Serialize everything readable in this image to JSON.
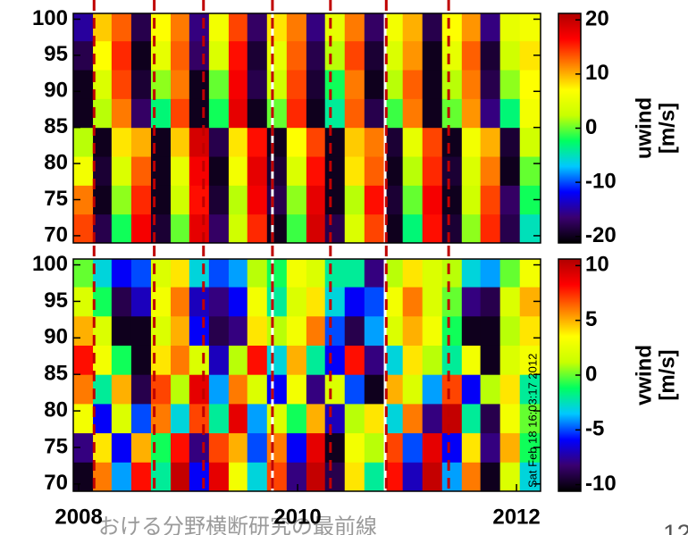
{
  "chart_data": [
    {
      "type": "heatmap",
      "xlim": [
        2007.95,
        2012.22
      ],
      "ylim": [
        69,
        100.8
      ],
      "yticks": [
        70,
        75,
        80,
        85,
        90,
        95,
        100
      ],
      "x_bins": [
        2007.95,
        2008.13,
        2008.3,
        2008.48,
        2008.66,
        2008.84,
        2009.01,
        2009.19,
        2009.37,
        2009.54,
        2009.72,
        2009.9,
        2010.08,
        2010.25,
        2010.43,
        2010.61,
        2010.79,
        2010.96,
        2011.14,
        2011.32,
        2011.5,
        2011.67,
        2011.85,
        2012.03,
        2012.22
      ],
      "y_bins": [
        69,
        73,
        77,
        81,
        85,
        89,
        93,
        97,
        100.8
      ],
      "values": [
        [
          14,
          -18,
          -2,
          17,
          -19,
          0,
          18,
          -17,
          3,
          15,
          -20,
          -1,
          19,
          -18,
          4,
          14,
          -20,
          -3,
          16,
          -19,
          1,
          15,
          -18,
          -5
        ],
        [
          12,
          -20,
          1,
          15,
          -20,
          3,
          16,
          -19,
          2,
          17,
          -18,
          1,
          18,
          -20,
          2,
          16,
          -19,
          0,
          17,
          -20,
          3,
          14,
          -17,
          -2
        ],
        [
          6,
          -19,
          4,
          13,
          -20,
          5,
          17,
          -20,
          6,
          18,
          -19,
          4,
          16,
          -20,
          8,
          13,
          -20,
          2,
          15,
          -19,
          4,
          12,
          -20,
          0
        ],
        [
          2,
          -20,
          8,
          10,
          -20,
          9,
          19,
          -18,
          8,
          16,
          -20,
          7,
          14,
          -20,
          9,
          12,
          -19,
          5,
          14,
          -20,
          6,
          10,
          -19,
          3
        ],
        [
          -20,
          2,
          12,
          -17,
          -3,
          14,
          -20,
          -2,
          18,
          -20,
          0,
          15,
          -20,
          -4,
          13,
          -18,
          -1,
          12,
          -20,
          0,
          11,
          -16,
          -3,
          6
        ],
        [
          -20,
          4,
          14,
          -19,
          1,
          12,
          -20,
          0,
          17,
          -18,
          3,
          14,
          -19,
          -2,
          12,
          -20,
          2,
          13,
          -20,
          2,
          12,
          -18,
          1,
          7
        ],
        [
          -18,
          7,
          15,
          -20,
          5,
          13,
          -17,
          4,
          16,
          -19,
          5,
          13,
          -18,
          2,
          14,
          -19,
          4,
          11,
          -20,
          5,
          13,
          -19,
          3,
          8
        ],
        [
          -15,
          9,
          13,
          -18,
          7,
          12,
          -16,
          6,
          14,
          -17,
          8,
          12,
          -16,
          5,
          12,
          -17,
          6,
          10,
          -18,
          7,
          11,
          -16,
          5,
          6
        ]
      ],
      "colormap": [
        "#000000",
        "#3a0070",
        "#0000ff",
        "#00c8ff",
        "#00ff60",
        "#c8ff00",
        "#ffff00",
        "#ff8000",
        "#ff0000",
        "#b00000"
      ],
      "clim": [
        -21.2,
        21.2
      ],
      "cticks": [
        20,
        10,
        0,
        -10,
        -20
      ],
      "colorbar_label": [
        "uwind",
        "[m/s]"
      ],
      "event_lines": [
        2008.14,
        2008.69,
        2009.14,
        2009.77,
        2010.3,
        2010.81,
        2011.38
      ],
      "event_color": "#c00000",
      "data_gaps": [
        2009.77,
        2010.8
      ]
    },
    {
      "type": "heatmap",
      "xlim": [
        2007.95,
        2012.22
      ],
      "ylim": [
        69,
        100.8
      ],
      "yticks": [
        70,
        75,
        80,
        85,
        90,
        95,
        100
      ],
      "xticks": [
        2008,
        2010,
        2012
      ],
      "x_bins": [
        2007.95,
        2008.13,
        2008.3,
        2008.48,
        2008.66,
        2008.84,
        2009.01,
        2009.19,
        2009.37,
        2009.54,
        2009.72,
        2009.9,
        2010.08,
        2010.25,
        2010.43,
        2010.61,
        2010.79,
        2010.96,
        2011.14,
        2011.32,
        2011.5,
        2011.67,
        2011.85,
        2012.03,
        2012.22
      ],
      "y_bins": [
        69,
        73,
        77,
        81,
        85,
        89,
        93,
        97,
        100.8
      ],
      "values": [
        [
          -10,
          6,
          -4,
          8,
          -2,
          10,
          -6,
          9,
          3,
          -3,
          7,
          -8,
          10,
          -9,
          4,
          -2,
          8,
          -7,
          10,
          -4,
          6,
          -10,
          2,
          -3
        ],
        [
          -8,
          4,
          -6,
          5,
          -1,
          8,
          -8,
          7,
          5,
          -5,
          6,
          -6,
          9,
          -10,
          3,
          1,
          7,
          -5,
          9,
          -6,
          4,
          -8,
          5,
          -1
        ],
        [
          3,
          -6,
          2,
          -5,
          6,
          -3,
          7,
          -2,
          9,
          -4,
          2,
          -1,
          5,
          -7,
          1,
          4,
          -3,
          6,
          -8,
          10,
          -2,
          -9,
          3,
          0
        ],
        [
          6,
          -2,
          5,
          -9,
          7,
          1,
          9,
          -4,
          6,
          2,
          -6,
          3,
          -8,
          2,
          -5,
          -10,
          5,
          2,
          -4,
          7,
          -6,
          1,
          4,
          -2
        ],
        [
          8,
          3,
          -1,
          -10,
          4,
          6,
          2,
          -7,
          1,
          8,
          -3,
          5,
          -2,
          -6,
          8,
          -8,
          -3,
          4,
          1,
          -2,
          3,
          -10,
          2,
          3
        ],
        [
          5,
          2,
          -10,
          -10,
          2,
          5,
          -6,
          -9,
          -8,
          4,
          1,
          3,
          6,
          -5,
          -9,
          -4,
          2,
          5,
          3,
          -1,
          -10,
          -10,
          1,
          4
        ],
        [
          2,
          -1,
          -9,
          -7,
          3,
          6,
          -7,
          -8,
          -6,
          3,
          -2,
          2,
          4,
          -3,
          -6,
          -5,
          3,
          6,
          2,
          0,
          -8,
          -9,
          2,
          5
        ],
        [
          0,
          -3,
          -6,
          -5,
          2,
          4,
          -3,
          -5,
          -4,
          1,
          -1,
          3,
          2,
          -2,
          -2,
          -8,
          1,
          4,
          2,
          1,
          -3,
          -4,
          0,
          3
        ]
      ],
      "colormap": [
        "#000000",
        "#3a0070",
        "#0000ff",
        "#00c8ff",
        "#00ff60",
        "#c8ff00",
        "#ffff00",
        "#ff8000",
        "#ff0000",
        "#b00000"
      ],
      "clim": [
        -10.6,
        10.6
      ],
      "cticks": [
        10,
        5,
        0,
        -5,
        -10
      ],
      "colorbar_label": [
        "vwind",
        "[m/s]"
      ],
      "event_lines": [
        2008.14,
        2008.69,
        2009.14,
        2009.77,
        2010.3,
        2010.81,
        2011.38
      ],
      "event_color": "#c00000",
      "data_gaps": [
        2009.77,
        2010.8
      ],
      "timestamp": "Sat Feb 18 16:03:17 2012"
    }
  ],
  "footer": {
    "text": "おける分野横断研究の最前線",
    "page_number": 12
  }
}
